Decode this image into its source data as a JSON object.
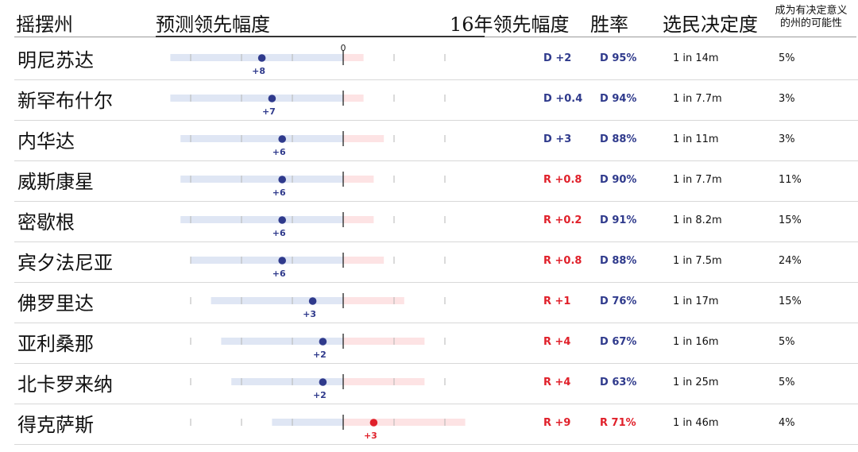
{
  "header": {
    "state": "摇摆州",
    "forecast": "预测领先幅度",
    "lead16": "16年领先幅度",
    "winrate": "胜率",
    "decisiveness": "选民决定度",
    "tipping_line1": "成为有决定意义",
    "tipping_line2": "的州的可能性"
  },
  "colors": {
    "dem": "#2f3a8c",
    "rep": "#e0202a",
    "dem_band": "#dfe6f4",
    "rep_band": "#fde3e4"
  },
  "chart_data": {
    "type": "dot",
    "zero_label": "0",
    "rows": [
      {
        "state": "明尼苏达",
        "lead": 8,
        "lead_label": "+8",
        "party": "D",
        "band": [
          -17,
          2
        ],
        "lead16": "D +2",
        "lead16_party": "D",
        "win": "D 95%",
        "win_party": "D",
        "decide": "1 in 14m",
        "tip": "5%"
      },
      {
        "state": "新罕布什尔",
        "lead": 7,
        "lead_label": "+7",
        "party": "D",
        "band": [
          -17,
          2
        ],
        "lead16": "D +0.4",
        "lead16_party": "D",
        "win": "D 94%",
        "win_party": "D",
        "decide": "1 in 7.7m",
        "tip": "3%"
      },
      {
        "state": "内华达",
        "lead": 6,
        "lead_label": "+6",
        "party": "D",
        "band": [
          -16,
          4
        ],
        "lead16": "D +3",
        "lead16_party": "D",
        "win": "D 88%",
        "win_party": "D",
        "decide": "1 in 11m",
        "tip": "3%"
      },
      {
        "state": "威斯康星",
        "lead": 6,
        "lead_label": "+6",
        "party": "D",
        "band": [
          -16,
          3
        ],
        "lead16": "R +0.8",
        "lead16_party": "R",
        "win": "D 90%",
        "win_party": "D",
        "decide": "1 in 7.7m",
        "tip": "11%"
      },
      {
        "state": "密歇根",
        "lead": 6,
        "lead_label": "+6",
        "party": "D",
        "band": [
          -16,
          3
        ],
        "lead16": "R +0.2",
        "lead16_party": "R",
        "win": "D 91%",
        "win_party": "D",
        "decide": "1 in 8.2m",
        "tip": "15%"
      },
      {
        "state": "宾夕法尼亚",
        "lead": 6,
        "lead_label": "+6",
        "party": "D",
        "band": [
          -15,
          4
        ],
        "lead16": "R +0.8",
        "lead16_party": "R",
        "win": "D 88%",
        "win_party": "D",
        "decide": "1 in 7.5m",
        "tip": "24%"
      },
      {
        "state": "佛罗里达",
        "lead": 3,
        "lead_label": "+3",
        "party": "D",
        "band": [
          -13,
          6
        ],
        "lead16": "R +1",
        "lead16_party": "R",
        "win": "D 76%",
        "win_party": "D",
        "decide": "1 in 17m",
        "tip": "15%"
      },
      {
        "state": "亚利桑那",
        "lead": 2,
        "lead_label": "+2",
        "party": "D",
        "band": [
          -12,
          8
        ],
        "lead16": "R +4",
        "lead16_party": "R",
        "win": "D 67%",
        "win_party": "D",
        "decide": "1 in 16m",
        "tip": "5%"
      },
      {
        "state": "北卡罗来纳",
        "lead": 2,
        "lead_label": "+2",
        "party": "D",
        "band": [
          -11,
          8
        ],
        "lead16": "R +4",
        "lead16_party": "R",
        "win": "D 63%",
        "win_party": "D",
        "decide": "1 in 25m",
        "tip": "5%"
      },
      {
        "state": "得克萨斯",
        "lead": -3,
        "lead_label": "+3",
        "party": "R",
        "band": [
          -7,
          12
        ],
        "lead16": "R +9",
        "lead16_party": "R",
        "win": "R 71%",
        "win_party": "R",
        "decide": "1 in 46m",
        "tip": "4%"
      }
    ],
    "ticks": [
      -15,
      -10,
      -5,
      0,
      5,
      10
    ]
  }
}
